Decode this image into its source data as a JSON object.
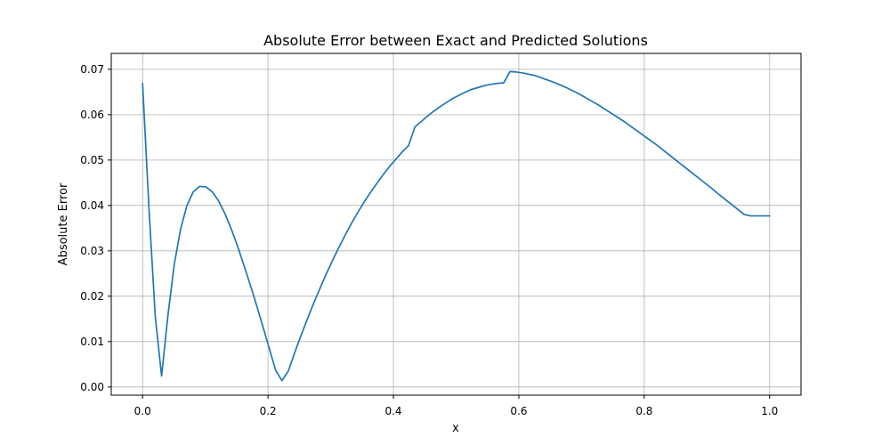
{
  "chart_data": {
    "type": "line",
    "title": "Absolute Error between Exact and Predicted Solutions",
    "xlabel": "x",
    "ylabel": "Absolute Error",
    "xlim": [
      -0.05,
      1.05
    ],
    "ylim": [
      -0.0018,
      0.0735
    ],
    "grid": true,
    "x_ticks": [
      0.0,
      0.2,
      0.4,
      0.6,
      0.8,
      1.0
    ],
    "x_tick_labels": [
      "0.0",
      "0.2",
      "0.4",
      "0.6",
      "0.8",
      "1.0"
    ],
    "y_ticks": [
      0.0,
      0.01,
      0.02,
      0.03,
      0.04,
      0.05,
      0.06,
      0.07
    ],
    "y_tick_labels": [
      "0.00",
      "0.01",
      "0.02",
      "0.03",
      "0.04",
      "0.05",
      "0.06",
      "0.07"
    ],
    "series": [
      {
        "color": "#1f77b4",
        "x": [
          0.0,
          0.0101,
          0.0202,
          0.0303,
          0.0404,
          0.0505,
          0.0606,
          0.0707,
          0.0808,
          0.0909,
          0.101,
          0.1111,
          0.1212,
          0.1313,
          0.1414,
          0.1515,
          0.1616,
          0.1717,
          0.1818,
          0.1919,
          0.202,
          0.2121,
          0.2222,
          0.2323,
          0.2424,
          0.2525,
          0.2626,
          0.2727,
          0.2828,
          0.2929,
          0.303,
          0.3131,
          0.3232,
          0.3333,
          0.3434,
          0.3535,
          0.3636,
          0.3737,
          0.3838,
          0.3939,
          0.404,
          0.4141,
          0.4242,
          0.4343,
          0.4444,
          0.4545,
          0.4646,
          0.4747,
          0.4848,
          0.4949,
          0.5051,
          0.5152,
          0.5253,
          0.5354,
          0.5455,
          0.5556,
          0.5657,
          0.5758,
          0.5859,
          0.596,
          0.6061,
          0.6162,
          0.6263,
          0.6364,
          0.6465,
          0.6566,
          0.6667,
          0.6768,
          0.6869,
          0.697,
          0.7071,
          0.7172,
          0.7273,
          0.7374,
          0.7475,
          0.7576,
          0.7677,
          0.7778,
          0.7879,
          0.798,
          0.8081,
          0.8182,
          0.8283,
          0.8384,
          0.8485,
          0.8586,
          0.8687,
          0.8788,
          0.8889,
          0.899,
          0.9091,
          0.9192,
          0.9293,
          0.9394,
          0.9495,
          0.9596,
          0.9697,
          0.9798,
          0.9899,
          1.0
        ],
        "y": [
          0.0669,
          0.0395,
          0.0155,
          0.0024,
          0.0158,
          0.027,
          0.0348,
          0.04,
          0.043,
          0.0442,
          0.0441,
          0.043,
          0.041,
          0.0382,
          0.0348,
          0.031,
          0.0268,
          0.0225,
          0.018,
          0.0133,
          0.0085,
          0.0037,
          0.0014,
          0.0035,
          0.0075,
          0.0113,
          0.0149,
          0.0184,
          0.0217,
          0.0249,
          0.0279,
          0.0308,
          0.0335,
          0.0361,
          0.0385,
          0.0408,
          0.0429,
          0.0449,
          0.0468,
          0.0486,
          0.0502,
          0.0518,
          0.0532,
          0.0573,
          0.0585,
          0.0597,
          0.0608,
          0.0618,
          0.0627,
          0.0636,
          0.0643,
          0.065,
          0.0656,
          0.066,
          0.0664,
          0.0667,
          0.0669,
          0.067,
          0.0695,
          0.0694,
          0.0692,
          0.0689,
          0.0686,
          0.0681,
          0.0676,
          0.0671,
          0.0665,
          0.0659,
          0.0652,
          0.0645,
          0.0637,
          0.0629,
          0.0621,
          0.0612,
          0.0603,
          0.0594,
          0.0585,
          0.0575,
          0.0565,
          0.0555,
          0.0545,
          0.0535,
          0.0524,
          0.0513,
          0.0502,
          0.0491,
          0.048,
          0.0469,
          0.0458,
          0.0447,
          0.0436,
          0.0424,
          0.0413,
          0.0402,
          0.0391,
          0.038,
          0.0377,
          0.0377,
          0.0377,
          0.0377
        ]
      }
    ]
  }
}
